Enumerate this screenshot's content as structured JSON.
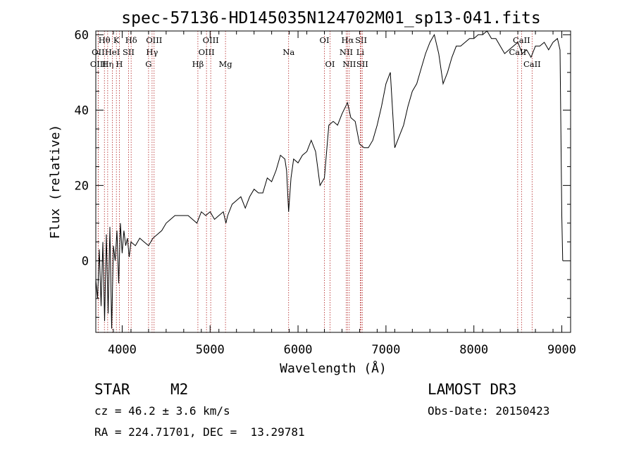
{
  "chart_data": {
    "type": "line",
    "title": "spec-57136-HD145035N124702M01_sp13-041.fits",
    "xlabel": "Wavelength (Å)",
    "ylabel": "Flux (relative)",
    "xlim": [
      3700,
      9100
    ],
    "ylim": [
      -19,
      61
    ],
    "x_ticks": [
      4000,
      5000,
      6000,
      7000,
      8000,
      9000
    ],
    "y_ticks": [
      0,
      20,
      40,
      60
    ],
    "x_minor_step": 200,
    "y_minor_step": 5,
    "grid": false,
    "series": [
      {
        "name": "spectrum",
        "points": [
          [
            3700,
            -5
          ],
          [
            3720,
            -10
          ],
          [
            3740,
            3
          ],
          [
            3760,
            -12
          ],
          [
            3780,
            5
          ],
          [
            3800,
            -16
          ],
          [
            3820,
            7
          ],
          [
            3840,
            -14
          ],
          [
            3860,
            9
          ],
          [
            3880,
            -18
          ],
          [
            3900,
            4
          ],
          [
            3920,
            0
          ],
          [
            3940,
            8
          ],
          [
            3960,
            -6
          ],
          [
            3980,
            10
          ],
          [
            4000,
            2
          ],
          [
            4020,
            8
          ],
          [
            4040,
            4
          ],
          [
            4060,
            6
          ],
          [
            4080,
            1
          ],
          [
            4100,
            5
          ],
          [
            4150,
            4
          ],
          [
            4200,
            6
          ],
          [
            4250,
            5
          ],
          [
            4300,
            4
          ],
          [
            4350,
            6
          ],
          [
            4400,
            7
          ],
          [
            4450,
            8
          ],
          [
            4500,
            10
          ],
          [
            4550,
            11
          ],
          [
            4600,
            12
          ],
          [
            4650,
            12
          ],
          [
            4700,
            12
          ],
          [
            4750,
            12
          ],
          [
            4800,
            11
          ],
          [
            4850,
            10
          ],
          [
            4900,
            13
          ],
          [
            4950,
            12
          ],
          [
            5000,
            13
          ],
          [
            5050,
            11
          ],
          [
            5100,
            12
          ],
          [
            5150,
            13
          ],
          [
            5180,
            10
          ],
          [
            5200,
            12
          ],
          [
            5250,
            15
          ],
          [
            5300,
            16
          ],
          [
            5350,
            17
          ],
          [
            5400,
            14
          ],
          [
            5450,
            17
          ],
          [
            5500,
            19
          ],
          [
            5550,
            18
          ],
          [
            5600,
            18
          ],
          [
            5650,
            22
          ],
          [
            5700,
            21
          ],
          [
            5750,
            24
          ],
          [
            5800,
            28
          ],
          [
            5850,
            27
          ],
          [
            5870,
            24
          ],
          [
            5893,
            13
          ],
          [
            5920,
            22
          ],
          [
            5950,
            27
          ],
          [
            6000,
            26
          ],
          [
            6050,
            28
          ],
          [
            6100,
            29
          ],
          [
            6150,
            32
          ],
          [
            6200,
            29
          ],
          [
            6250,
            20
          ],
          [
            6300,
            22
          ],
          [
            6350,
            36
          ],
          [
            6400,
            37
          ],
          [
            6450,
            36
          ],
          [
            6500,
            39
          ],
          [
            6563,
            42
          ],
          [
            6600,
            38
          ],
          [
            6650,
            37
          ],
          [
            6700,
            31
          ],
          [
            6750,
            30
          ],
          [
            6800,
            30
          ],
          [
            6850,
            32
          ],
          [
            6900,
            36
          ],
          [
            6950,
            41
          ],
          [
            7000,
            47
          ],
          [
            7050,
            50
          ],
          [
            7100,
            30
          ],
          [
            7150,
            33
          ],
          [
            7200,
            36
          ],
          [
            7250,
            41
          ],
          [
            7300,
            45
          ],
          [
            7350,
            47
          ],
          [
            7400,
            51
          ],
          [
            7450,
            55
          ],
          [
            7500,
            58
          ],
          [
            7550,
            60
          ],
          [
            7600,
            55
          ],
          [
            7650,
            47
          ],
          [
            7700,
            50
          ],
          [
            7750,
            54
          ],
          [
            7800,
            57
          ],
          [
            7850,
            57
          ],
          [
            7900,
            58
          ],
          [
            7950,
            59
          ],
          [
            8000,
            59
          ],
          [
            8050,
            60
          ],
          [
            8100,
            60
          ],
          [
            8150,
            61
          ],
          [
            8200,
            59
          ],
          [
            8250,
            59
          ],
          [
            8300,
            57
          ],
          [
            8350,
            55
          ],
          [
            8400,
            56
          ],
          [
            8450,
            57
          ],
          [
            8500,
            58
          ],
          [
            8550,
            55
          ],
          [
            8600,
            56
          ],
          [
            8650,
            54
          ],
          [
            8700,
            57
          ],
          [
            8750,
            57
          ],
          [
            8800,
            58
          ],
          [
            8850,
            56
          ],
          [
            8900,
            58
          ],
          [
            8950,
            59
          ],
          [
            8980,
            56
          ],
          [
            9000,
            12
          ],
          [
            9010,
            0
          ]
        ]
      }
    ],
    "lines": [
      {
        "wavelength": 3798,
        "label": "Hθ",
        "row": 0
      },
      {
        "wavelength": 3727,
        "label": "OII",
        "row": 1
      },
      {
        "wavelength": 3727,
        "label": "OIII",
        "row": 2
      },
      {
        "wavelength": 3835,
        "label": "Hη",
        "row": 2
      },
      {
        "wavelength": 3934,
        "label": "K",
        "row": 0
      },
      {
        "wavelength": 3889,
        "label": "HeI",
        "row": 1
      },
      {
        "wavelength": 3968,
        "label": "H",
        "row": 2
      },
      {
        "wavelength": 4072,
        "label": "SII",
        "row": 1
      },
      {
        "wavelength": 4102,
        "label": "Hδ",
        "row": 0
      },
      {
        "wavelength": 4300,
        "label": "G",
        "row": 2
      },
      {
        "wavelength": 4340,
        "label": "Hγ",
        "row": 1
      },
      {
        "wavelength": 4363,
        "label": "OIII",
        "row": 0
      },
      {
        "wavelength": 4861,
        "label": "Hβ",
        "row": 2
      },
      {
        "wavelength": 4959,
        "label": "OIII",
        "row": 1
      },
      {
        "wavelength": 5007,
        "label": "OIII",
        "row": 0
      },
      {
        "wavelength": 5175,
        "label": "Mg",
        "row": 2
      },
      {
        "wavelength": 5893,
        "label": "Na",
        "row": 1
      },
      {
        "wavelength": 6300,
        "label": "OI",
        "row": 0
      },
      {
        "wavelength": 6364,
        "label": "OI",
        "row": 2
      },
      {
        "wavelength": 6548,
        "label": "NII",
        "row": 1
      },
      {
        "wavelength": 6563,
        "label": "Hα",
        "row": 0
      },
      {
        "wavelength": 6583,
        "label": "NII",
        "row": 2
      },
      {
        "wavelength": 6708,
        "label": "Li",
        "row": 1
      },
      {
        "wavelength": 6717,
        "label": "SII",
        "row": 0
      },
      {
        "wavelength": 6731,
        "label": "SII",
        "row": 2
      },
      {
        "wavelength": 8498,
        "label": "CaII",
        "row": 1
      },
      {
        "wavelength": 8542,
        "label": "CaII",
        "row": 0
      },
      {
        "wavelength": 8662,
        "label": "CaII",
        "row": 2
      }
    ]
  },
  "info": {
    "class": "STAR",
    "subclass": "M2",
    "survey": "LAMOST DR3",
    "cz": "cz = 46.2 ± 3.6 km/s",
    "obs_date": "Obs-Date: 20150423",
    "coords": "RA = 224.71701, DEC =  13.29781"
  },
  "colors": {
    "axis": "#000000",
    "spectrum": "#000000",
    "line_marker": "#b22222"
  }
}
